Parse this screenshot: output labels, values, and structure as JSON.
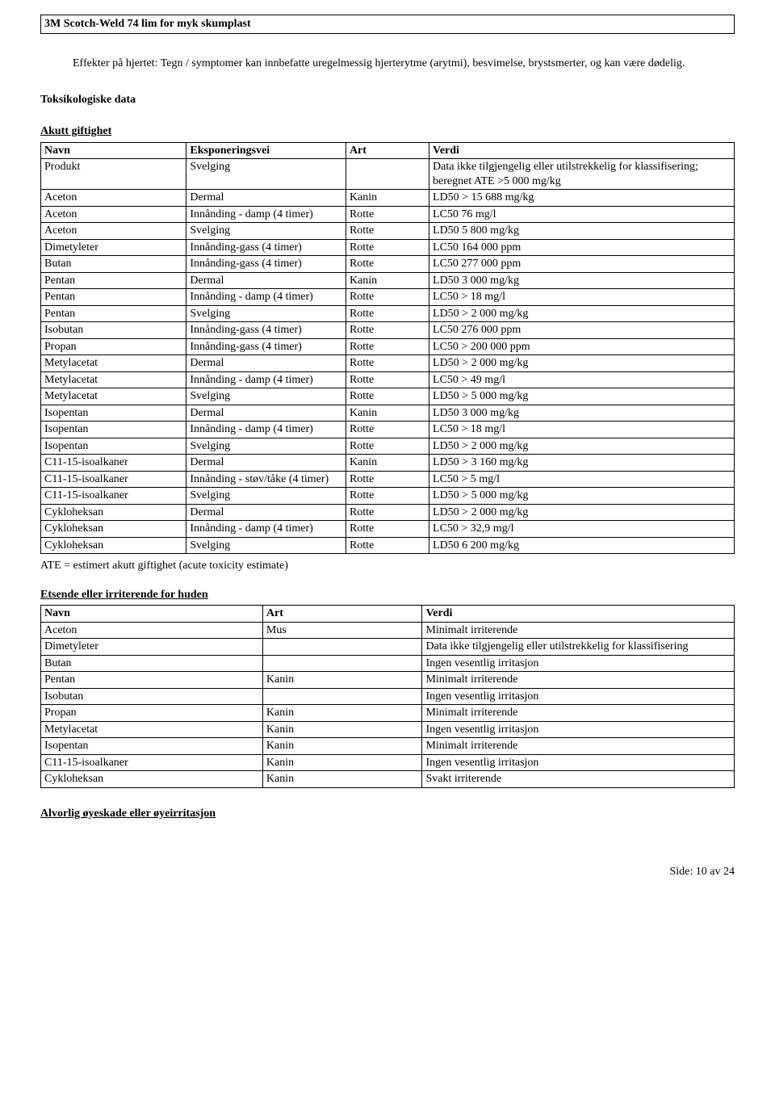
{
  "doc_title": "3M Scotch-Weld 74 lim for myk skumplast",
  "effects_paragraph": "Effekter på hjertet: Tegn / symptomer kan innbefatte uregelmessig hjerterytme (arytmi), besvimelse, brystsmerter, og kan være dødelig.",
  "tox_heading": "Toksikologiske data",
  "acute_heading": "Akutt giftighet",
  "t1_headers": {
    "c1": "Navn",
    "c2": "Eksponeringsvei",
    "c3": "Art",
    "c4": "Verdi"
  },
  "t1_rows": [
    {
      "c1": "Produkt",
      "c2": "Svelging",
      "c3": "",
      "c4": "Data ikke tilgjengelig eller utilstrekkelig for klassifisering; beregnet ATE >5 000 mg/kg"
    },
    {
      "c1": "Aceton",
      "c2": "Dermal",
      "c3": "Kanin",
      "c4": "LD50 > 15 688 mg/kg"
    },
    {
      "c1": "Aceton",
      "c2": "Innånding - damp (4 timer)",
      "c3": "Rotte",
      "c4": "LC50  76 mg/l"
    },
    {
      "c1": "Aceton",
      "c2": "Svelging",
      "c3": "Rotte",
      "c4": "LD50  5 800 mg/kg"
    },
    {
      "c1": "Dimetyleter",
      "c2": "Innånding-gass (4 timer)",
      "c3": "Rotte",
      "c4": "LC50  164 000 ppm"
    },
    {
      "c1": "Butan",
      "c2": "Innånding-gass (4 timer)",
      "c3": "Rotte",
      "c4": "LC50  277 000 ppm"
    },
    {
      "c1": "Pentan",
      "c2": "Dermal",
      "c3": "Kanin",
      "c4": "LD50  3 000 mg/kg"
    },
    {
      "c1": "Pentan",
      "c2": "Innånding - damp (4 timer)",
      "c3": "Rotte",
      "c4": "LC50 > 18 mg/l"
    },
    {
      "c1": "Pentan",
      "c2": "Svelging",
      "c3": "Rotte",
      "c4": "LD50 > 2 000 mg/kg"
    },
    {
      "c1": "Isobutan",
      "c2": "Innånding-gass (4 timer)",
      "c3": "Rotte",
      "c4": "LC50  276 000 ppm"
    },
    {
      "c1": "Propan",
      "c2": "Innånding-gass (4 timer)",
      "c3": "Rotte",
      "c4": "LC50 > 200 000 ppm"
    },
    {
      "c1": "Metylacetat",
      "c2": "Dermal",
      "c3": "Rotte",
      "c4": "LD50 > 2 000 mg/kg"
    },
    {
      "c1": "Metylacetat",
      "c2": "Innånding - damp (4 timer)",
      "c3": "Rotte",
      "c4": "LC50 > 49 mg/l"
    },
    {
      "c1": "Metylacetat",
      "c2": "Svelging",
      "c3": "Rotte",
      "c4": "LD50 > 5 000 mg/kg"
    },
    {
      "c1": "Isopentan",
      "c2": "Dermal",
      "c3": "Kanin",
      "c4": "LD50  3 000 mg/kg"
    },
    {
      "c1": "Isopentan",
      "c2": "Innånding - damp (4 timer)",
      "c3": "Rotte",
      "c4": "LC50 > 18 mg/l"
    },
    {
      "c1": "Isopentan",
      "c2": "Svelging",
      "c3": "Rotte",
      "c4": "LD50 > 2 000 mg/kg"
    },
    {
      "c1": "C11-15-isoalkaner",
      "c2": "Dermal",
      "c3": "Kanin",
      "c4": "LD50 > 3 160 mg/kg"
    },
    {
      "c1": "C11-15-isoalkaner",
      "c2": "Innånding - støv/tåke (4 timer)",
      "c3": "Rotte",
      "c4": "LC50 > 5 mg/l"
    },
    {
      "c1": "C11-15-isoalkaner",
      "c2": "Svelging",
      "c3": "Rotte",
      "c4": "LD50 > 5 000 mg/kg"
    },
    {
      "c1": "Cykloheksan",
      "c2": "Dermal",
      "c3": "Rotte",
      "c4": "LD50 > 2 000 mg/kg"
    },
    {
      "c1": "Cykloheksan",
      "c2": "Innånding - damp (4 timer)",
      "c3": "Rotte",
      "c4": "LC50 > 32,9 mg/l"
    },
    {
      "c1": "Cykloheksan",
      "c2": "Svelging",
      "c3": "Rotte",
      "c4": "LD50  6 200 mg/kg"
    }
  ],
  "ate_note": "ATE = estimert akutt giftighet (acute toxicity estimate)",
  "skin_heading": "Etsende eller irriterende for huden",
  "t2_headers": {
    "c1": "Navn",
    "c2": "Art",
    "c3": "Verdi"
  },
  "t2_rows": [
    {
      "c1": "Aceton",
      "c2": "Mus",
      "c3": "Minimalt irriterende"
    },
    {
      "c1": "Dimetyleter",
      "c2": "",
      "c3": "Data ikke tilgjengelig eller utilstrekkelig for klassifisering"
    },
    {
      "c1": "Butan",
      "c2": "",
      "c3": "Ingen vesentlig irritasjon"
    },
    {
      "c1": "Pentan",
      "c2": "Kanin",
      "c3": "Minimalt irriterende"
    },
    {
      "c1": "Isobutan",
      "c2": "",
      "c3": "Ingen vesentlig irritasjon"
    },
    {
      "c1": "Propan",
      "c2": "Kanin",
      "c3": "Minimalt irriterende"
    },
    {
      "c1": "Metylacetat",
      "c2": "Kanin",
      "c3": "Ingen vesentlig irritasjon"
    },
    {
      "c1": "Isopentan",
      "c2": "Kanin",
      "c3": "Minimalt irriterende"
    },
    {
      "c1": "C11-15-isoalkaner",
      "c2": "Kanin",
      "c3": "Ingen vesentlig irritasjon"
    },
    {
      "c1": "Cykloheksan",
      "c2": "Kanin",
      "c3": "Svakt irriterende"
    }
  ],
  "eye_heading": "Alvorlig øyeskade eller øyeirritasjon",
  "footer": "Side: 10 av  24"
}
